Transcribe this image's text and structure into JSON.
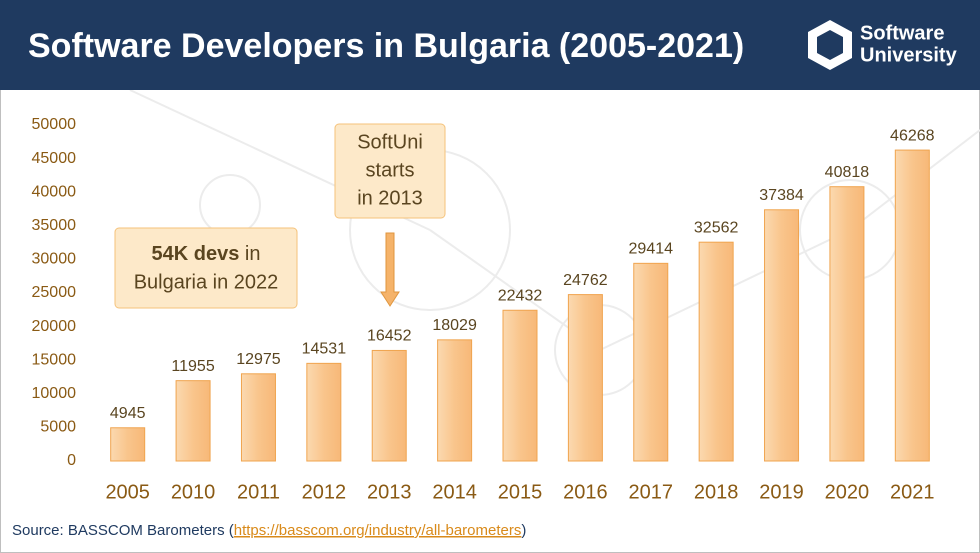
{
  "chart_data": {
    "type": "bar",
    "title": "Software Developers in Bulgaria (2005-2021)",
    "categories": [
      "2005",
      "2010",
      "2011",
      "2012",
      "2013",
      "2014",
      "2015",
      "2016",
      "2017",
      "2018",
      "2019",
      "2020",
      "2021"
    ],
    "values": [
      4945,
      11955,
      12975,
      14531,
      16452,
      18029,
      22432,
      24762,
      29414,
      32562,
      37384,
      40818,
      46268
    ],
    "color": "#f7b878",
    "ylim": [
      0,
      50000
    ],
    "yticks": [
      0,
      5000,
      10000,
      15000,
      20000,
      25000,
      30000,
      35000,
      40000,
      45000,
      50000
    ],
    "grid": false,
    "annotations": [
      {
        "bold": "54K devs",
        "lines": [
          " in",
          "Bulgaria in 2022"
        ]
      },
      {
        "lines": [
          "SoftUni",
          "starts",
          "in 2013"
        ]
      }
    ]
  },
  "logo": [
    "Software",
    "University"
  ],
  "source": {
    "prefix": "Source: BASSCOM Barometers (",
    "link": "https://basscom.org/industry/all-barometers",
    "suffix": ")"
  }
}
